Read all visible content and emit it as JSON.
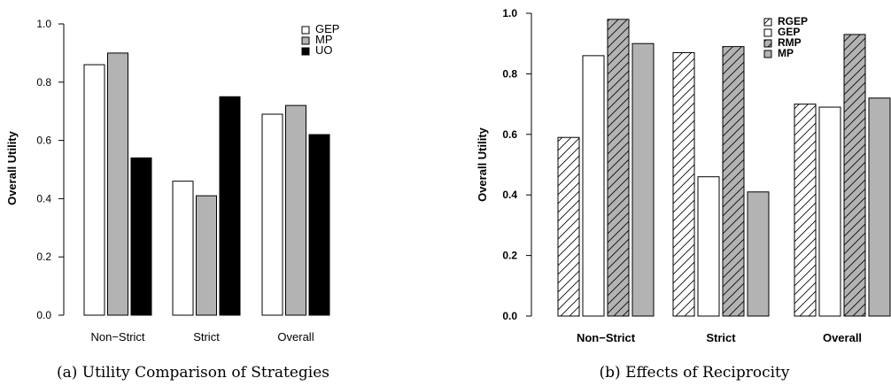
{
  "chart_data": [
    {
      "type": "bar",
      "title": "",
      "caption": "(a) Utility Comparison of Strategies",
      "xlabel": "",
      "ylabel": "Overall Utility",
      "ylim": [
        0,
        1.0
      ],
      "yticks": [
        "0.0",
        "0.2",
        "0.4",
        "0.6",
        "0.8",
        "1.0"
      ],
      "categories": [
        "Non−Strict",
        "Strict",
        "Overall"
      ],
      "series": [
        {
          "name": "GEP",
          "fill": "#ffffff",
          "hatch": false,
          "values": [
            0.86,
            0.46,
            0.69
          ]
        },
        {
          "name": "MP",
          "fill": "#b3b3b3",
          "hatch": false,
          "values": [
            0.9,
            0.41,
            0.72
          ]
        },
        {
          "name": "UO",
          "fill": "#000000",
          "hatch": false,
          "values": [
            0.54,
            0.75,
            0.62
          ]
        }
      ],
      "legend_position": "top-right",
      "grid": false
    },
    {
      "type": "bar",
      "title": "",
      "caption": "(b) Effects of Reciprocity",
      "xlabel": "",
      "ylabel": "Overall Utility",
      "ylim": [
        0,
        1.0
      ],
      "yticks": [
        "0.0",
        "0.2",
        "0.4",
        "0.6",
        "0.8",
        "1.0"
      ],
      "categories": [
        "Non−Strict",
        "Strict",
        "Overall"
      ],
      "series": [
        {
          "name": "RGEP",
          "fill": "#ffffff",
          "hatch": true,
          "values": [
            0.59,
            0.87,
            0.7
          ]
        },
        {
          "name": "GEP",
          "fill": "#ffffff",
          "hatch": false,
          "values": [
            0.86,
            0.46,
            0.69
          ]
        },
        {
          "name": "RMP",
          "fill": "#b3b3b3",
          "hatch": true,
          "values": [
            0.98,
            0.89,
            0.93
          ]
        },
        {
          "name": "MP",
          "fill": "#b3b3b3",
          "hatch": false,
          "values": [
            0.9,
            0.41,
            0.72
          ]
        }
      ],
      "legend_position": "top-right",
      "grid": false
    }
  ]
}
